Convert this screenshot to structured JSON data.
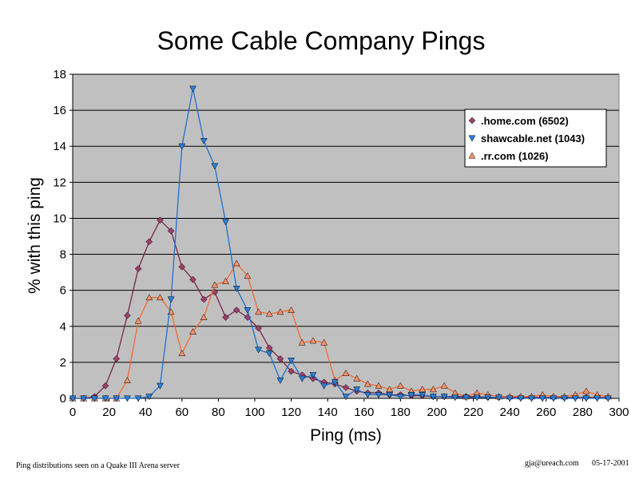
{
  "chart_data": {
    "type": "line",
    "title": "Some Cable Company Pings",
    "xlabel": "Ping (ms)",
    "ylabel": "% with this ping",
    "xlim": [
      0,
      300
    ],
    "ylim": [
      0,
      18
    ],
    "xticks": [
      0,
      20,
      40,
      60,
      80,
      100,
      120,
      140,
      160,
      180,
      200,
      220,
      240,
      260,
      280,
      300
    ],
    "yticks": [
      0,
      2,
      4,
      6,
      8,
      10,
      12,
      14,
      16,
      18
    ],
    "grid": "horizontal",
    "legend_position": "top-right",
    "series": [
      {
        "name": ".home.com (6502)",
        "color": "#7a2548",
        "marker": "diamond",
        "marker_color": "#9c3f6c",
        "x": [
          0,
          6,
          12,
          18,
          24,
          30,
          36,
          42,
          48,
          54,
          60,
          66,
          72,
          78,
          84,
          90,
          96,
          102,
          108,
          114,
          120,
          126,
          132,
          138,
          144,
          150,
          156,
          162,
          168,
          174,
          180,
          186,
          192,
          198,
          204,
          210,
          216,
          222,
          228,
          234,
          240,
          246,
          252,
          258,
          264,
          270,
          276,
          282,
          288,
          294
        ],
        "values": [
          0,
          0,
          0.1,
          0.7,
          2.2,
          4.6,
          7.2,
          8.7,
          9.9,
          9.3,
          7.3,
          6.6,
          5.5,
          5.9,
          4.5,
          4.9,
          4.5,
          3.9,
          2.8,
          2.2,
          1.5,
          1.3,
          1.1,
          0.9,
          0.8,
          0.6,
          0.4,
          0.3,
          0.3,
          0.2,
          0.2,
          0.15,
          0.15,
          0.1,
          0.1,
          0.1,
          0.1,
          0.1,
          0.05,
          0.05,
          0.05,
          0.05,
          0.05,
          0.05,
          0.05,
          0.05,
          0.05,
          0.05,
          0.05,
          0.05
        ]
      },
      {
        "name": "shawcable.net (1043)",
        "color": "#1e6fd0",
        "marker": "triangle-down",
        "marker_color": "#2a7fd8",
        "x": [
          0,
          6,
          12,
          18,
          24,
          30,
          36,
          42,
          48,
          54,
          60,
          66,
          72,
          78,
          84,
          90,
          96,
          102,
          108,
          114,
          120,
          126,
          132,
          138,
          144,
          150,
          156,
          162,
          168,
          174,
          180,
          186,
          192,
          198,
          204,
          210,
          216,
          222,
          228,
          234,
          240,
          246,
          252,
          258,
          264,
          270,
          276,
          282,
          288,
          294
        ],
        "values": [
          0,
          0,
          0,
          0,
          0,
          0,
          0,
          0.1,
          0.7,
          5.5,
          14,
          17.2,
          14.3,
          12.9,
          9.8,
          6.1,
          4.9,
          2.7,
          2.5,
          1,
          2.1,
          1.1,
          1.3,
          0.7,
          0.9,
          0.1,
          0.5,
          0.2,
          0.2,
          0.2,
          0.1,
          0.2,
          0.2,
          0.1,
          0.1,
          0.05,
          0.05,
          0.05,
          0.05,
          0.05,
          0,
          0,
          0,
          0,
          0,
          0,
          0,
          0,
          0,
          0
        ]
      },
      {
        "name": ".rr.com (1026)",
        "color": "#f26a35",
        "marker": "triangle-up",
        "marker_color": "#f4926a",
        "x": [
          0,
          6,
          12,
          18,
          24,
          30,
          36,
          42,
          48,
          54,
          60,
          66,
          72,
          78,
          84,
          90,
          96,
          102,
          108,
          114,
          120,
          126,
          132,
          138,
          144,
          150,
          156,
          162,
          168,
          174,
          180,
          186,
          192,
          198,
          204,
          210,
          216,
          222,
          228,
          234,
          240,
          246,
          252,
          258,
          264,
          270,
          276,
          282,
          288,
          294
        ],
        "values": [
          0,
          0,
          0,
          0,
          0,
          1,
          4.3,
          5.6,
          5.6,
          4.8,
          2.5,
          3.7,
          4.5,
          6.3,
          6.5,
          7.5,
          6.8,
          4.8,
          4.7,
          4.8,
          4.9,
          3.1,
          3.2,
          3.1,
          1,
          1.4,
          1.1,
          0.8,
          0.7,
          0.5,
          0.7,
          0.4,
          0.5,
          0.5,
          0.7,
          0.3,
          0.1,
          0.3,
          0.2,
          0.1,
          0.1,
          0.1,
          0.1,
          0.2,
          0.1,
          0.1,
          0.2,
          0.4,
          0.2,
          0.1
        ]
      }
    ]
  },
  "footer": {
    "left": "Ping distributions seen on a Quake III Arena server",
    "email": "gja@ureach.com",
    "date": "05-17-2001"
  }
}
